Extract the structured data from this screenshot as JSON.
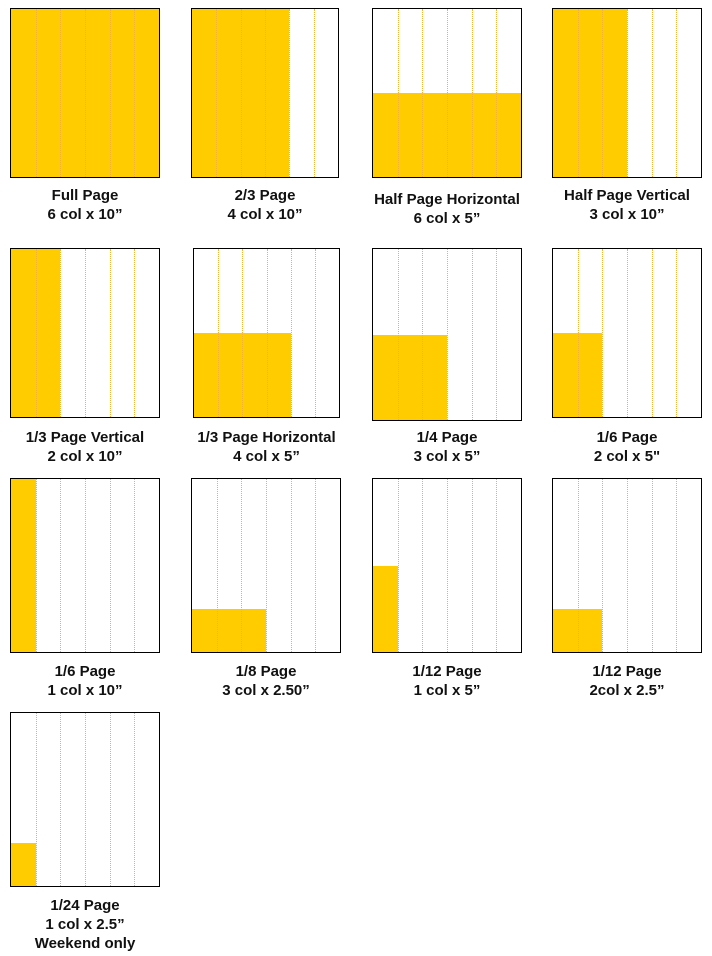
{
  "colors": {
    "fill": "#FFCC00",
    "column_guides": "#f2b233",
    "border": "#000000"
  },
  "page_columns": 6,
  "page_height_inches": 10,
  "ad_sizes": [
    {
      "name": "Full Page",
      "spec": "6 col x 10”",
      "note": "",
      "columns": 6,
      "height_inches": 10
    },
    {
      "name": "2/3 Page",
      "spec": "4 col x 10”",
      "note": "",
      "columns": 4,
      "height_inches": 10
    },
    {
      "name": "Half Page Horizontal",
      "spec": "6 col x 5”",
      "note": "",
      "columns": 6,
      "height_inches": 5
    },
    {
      "name": "Half Page Vertical",
      "spec": "3 col x 10”",
      "note": "",
      "columns": 3,
      "height_inches": 10
    },
    {
      "name": "1/3 Page Vertical",
      "spec": "2 col x 10”",
      "note": "",
      "columns": 2,
      "height_inches": 10
    },
    {
      "name": "1/3 Page Horizontal",
      "spec": "4 col x 5”",
      "note": "",
      "columns": 4,
      "height_inches": 5
    },
    {
      "name": "1/4 Page",
      "spec": "3 col x 5”",
      "note": "",
      "columns": 3,
      "height_inches": 5
    },
    {
      "name": "1/6 Page",
      "spec": "2 col x 5\"",
      "note": "",
      "columns": 2,
      "height_inches": 5
    },
    {
      "name": "1/6 Page",
      "spec": "1 col x 10”",
      "note": "",
      "columns": 1,
      "height_inches": 10
    },
    {
      "name": "1/8 Page",
      "spec": "3 col x 2.50”",
      "note": "",
      "columns": 3,
      "height_inches": 2.5
    },
    {
      "name": "1/12 Page",
      "spec": "1 col x 5”",
      "note": "",
      "columns": 1,
      "height_inches": 5
    },
    {
      "name": "1/12 Page",
      "spec": "2col x 2.5”",
      "note": "",
      "columns": 2,
      "height_inches": 2.5
    },
    {
      "name": "1/24 Page",
      "spec": "1 col x 2.5”",
      "note": "Weekend only",
      "columns": 1,
      "height_inches": 2.5
    }
  ]
}
